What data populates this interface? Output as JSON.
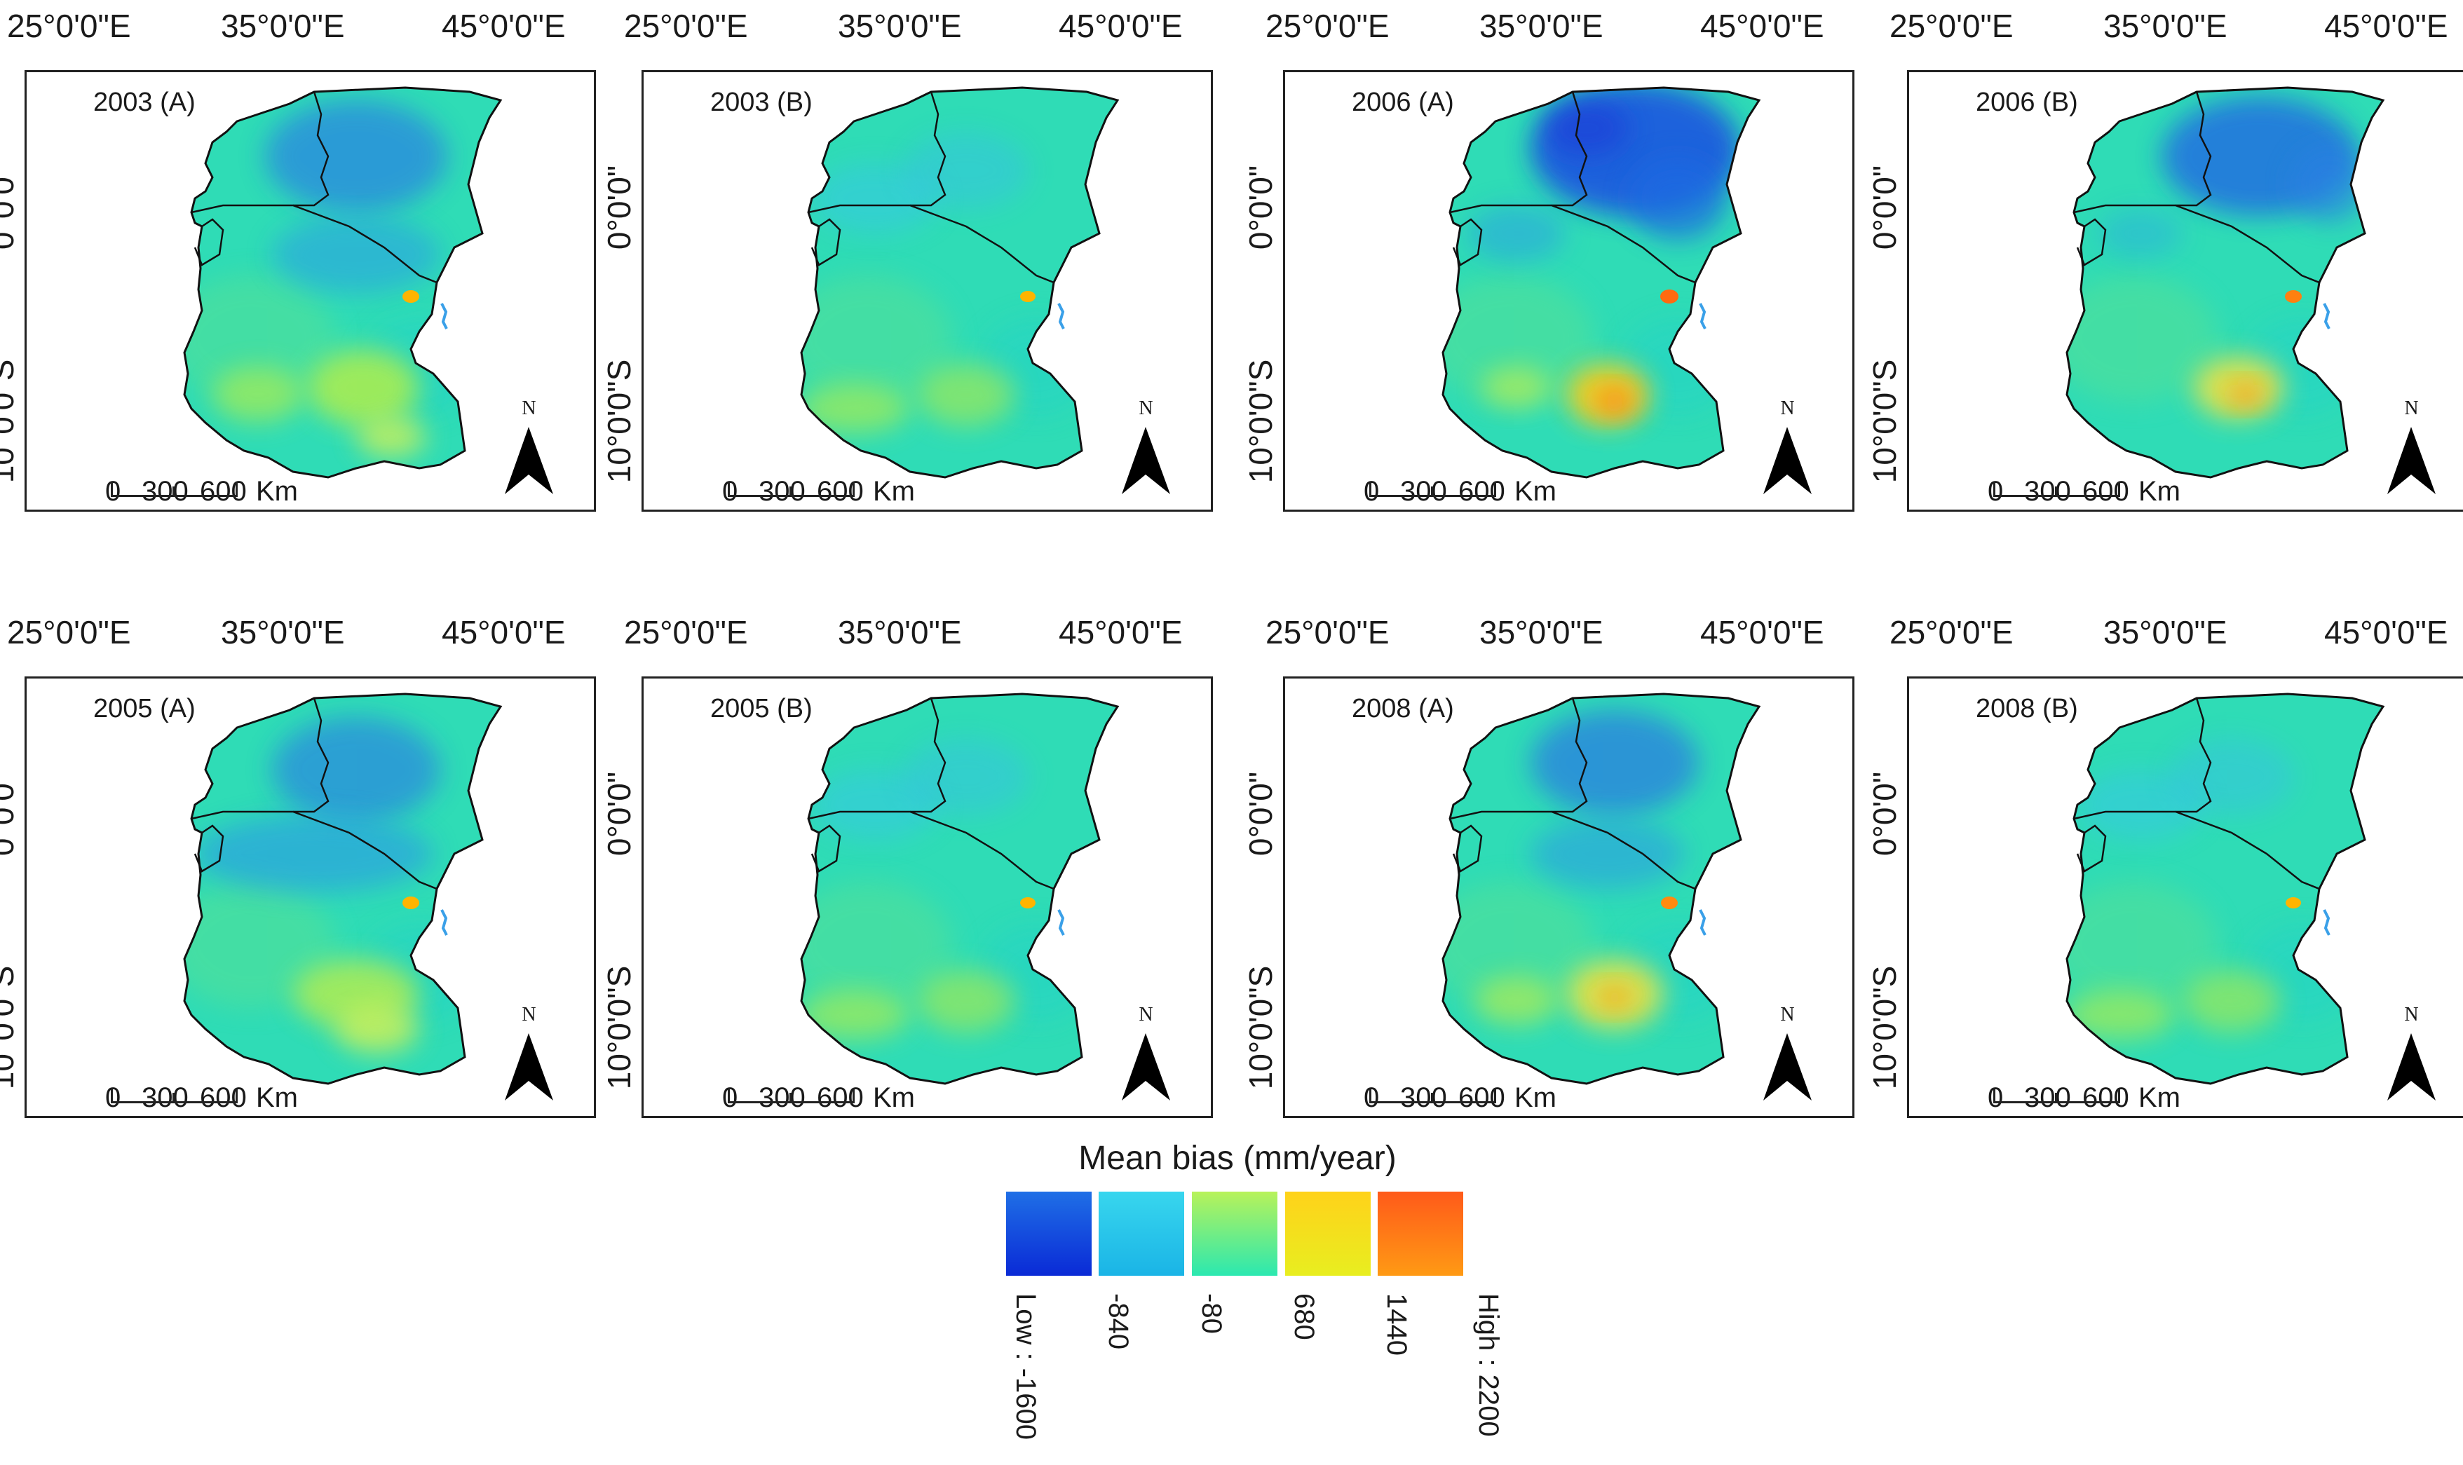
{
  "longitude_labels": [
    "25°0'0\"E",
    "35°0'0\"E",
    "45°0'0\"E"
  ],
  "latitude_labels": [
    "0°0'0\"",
    "10°0'0\"S"
  ],
  "panels": [
    {
      "title": "2003 (A)",
      "pattern": "a03"
    },
    {
      "title": "2003 (B)",
      "pattern": "b"
    },
    {
      "title": "2006 (A)",
      "pattern": "a06"
    },
    {
      "title": "2006 (B)",
      "pattern": "b06"
    },
    {
      "title": "2005 (A)",
      "pattern": "a05"
    },
    {
      "title": "2005 (B)",
      "pattern": "b"
    },
    {
      "title": "2008 (A)",
      "pattern": "a08"
    },
    {
      "title": "2008 (B)",
      "pattern": "b"
    }
  ],
  "scale_bar": {
    "labels": [
      "0",
      "300",
      "600",
      "Km"
    ]
  },
  "north_arrow": {
    "label": "N"
  },
  "legend": {
    "title": "Mean bias (mm/year)",
    "classes": [
      {
        "color_top": "#1f6fe6",
        "color_bottom": "#0a2ad6"
      },
      {
        "color_top": "#38d6ee",
        "color_bottom": "#1ab4e6"
      },
      {
        "color_top": "#b8f25a",
        "color_bottom": "#2be8b0"
      },
      {
        "color_top": "#ffd21a",
        "color_bottom": "#e8ee20"
      },
      {
        "color_top": "#ff5a1a",
        "color_bottom": "#ff9a14"
      }
    ],
    "tick_labels": [
      "Low : -1600",
      "-840",
      "-80",
      "680",
      "1440",
      "High : 2200"
    ]
  }
}
